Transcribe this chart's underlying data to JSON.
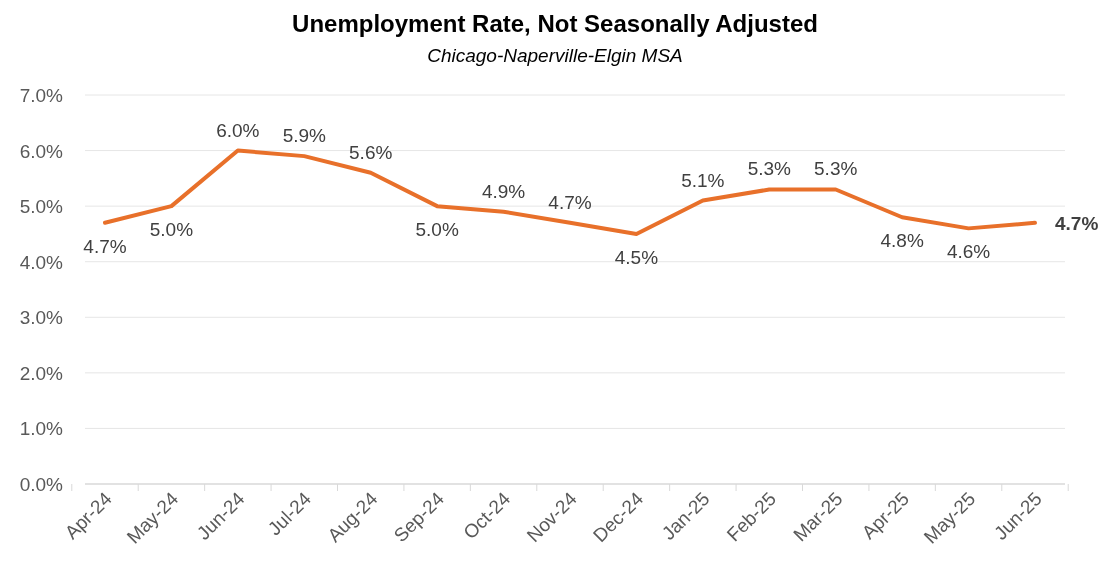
{
  "chart_data": {
    "type": "line",
    "title": "Unemployment Rate, Not Seasonally Adjusted",
    "subtitle": "Chicago-Naperville-Elgin MSA",
    "categories": [
      "Apr-24",
      "May-24",
      "Jun-24",
      "Jul-24",
      "Aug-24",
      "Sep-24",
      "Oct-24",
      "Nov-24",
      "Dec-24",
      "Jan-25",
      "Feb-25",
      "Mar-25",
      "Apr-25",
      "May-25",
      "Jun-25"
    ],
    "series": [
      {
        "color": "#e8702a",
        "values": [
          4.7,
          5.0,
          6.0,
          5.9,
          5.6,
          5.0,
          4.9,
          4.7,
          4.5,
          5.1,
          5.3,
          5.3,
          4.8,
          4.6,
          4.7
        ],
        "value_labels": [
          "4.7%",
          "5.0%",
          "6.0%",
          "5.9%",
          "5.6%",
          "5.0%",
          "4.9%",
          "4.7%",
          "4.5%",
          "5.1%",
          "5.3%",
          "5.3%",
          "4.8%",
          "4.6%",
          "4.7%"
        ]
      }
    ],
    "ylim": [
      0,
      7
    ],
    "yticks": [
      {
        "value": 0,
        "label": "0.0%"
      },
      {
        "value": 1,
        "label": "1.0%"
      },
      {
        "value": 2,
        "label": "2.0%"
      },
      {
        "value": 3,
        "label": "3.0%"
      },
      {
        "value": 4,
        "label": "4.0%"
      },
      {
        "value": 5,
        "label": "5.0%"
      },
      {
        "value": 6,
        "label": "6.0%"
      },
      {
        "value": 7,
        "label": "7.0%"
      }
    ],
    "grid": "y",
    "marker": "none",
    "line_style": "solid"
  }
}
